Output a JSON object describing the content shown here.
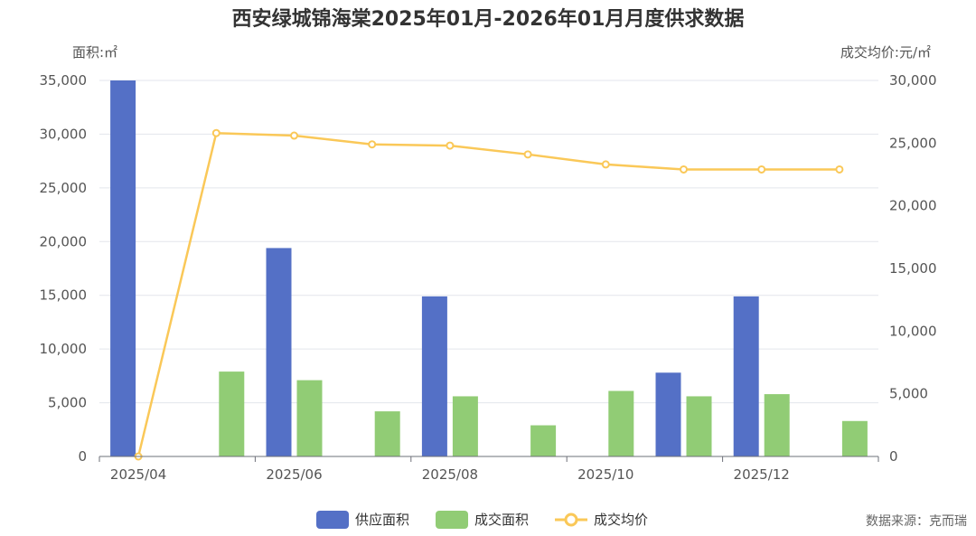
{
  "chart_data": {
    "type": "bar",
    "title": "西安绿城锦海棠2025年01月-2026年01月月度供求数据",
    "y_left_label": "面积:㎡",
    "y_right_label": "成交均价:元/㎡",
    "x_tick_labels": [
      "2025/04",
      "2025/06",
      "2025/08",
      "2025/10",
      "2025/12"
    ],
    "categories": [
      "2025/04",
      "2025/05",
      "2025/06",
      "2025/07",
      "2025/08",
      "2025/09",
      "2025/10",
      "2025/11",
      "2025/12",
      "2026/01"
    ],
    "y_left_ticks": [
      "0",
      "5,000",
      "10,000",
      "15,000",
      "20,000",
      "25,000",
      "30,000",
      "35,000"
    ],
    "y_right_ticks": [
      "0",
      "5,000",
      "10,000",
      "15,000",
      "20,000",
      "25,000",
      "30,000"
    ],
    "ylim_left": [
      0,
      35000
    ],
    "ylim_right": [
      0,
      30000
    ],
    "series": [
      {
        "name": "供应面积",
        "type": "bar",
        "axis": "left",
        "color": "#5470c6",
        "values": [
          35000,
          0,
          19400,
          0,
          14900,
          0,
          0,
          7800,
          14900,
          0
        ]
      },
      {
        "name": "成交面积",
        "type": "bar",
        "axis": "left",
        "color": "#91cc75",
        "values": [
          0,
          7900,
          7100,
          4200,
          5600,
          2900,
          6100,
          5600,
          5800,
          3300
        ]
      },
      {
        "name": "成交均价",
        "type": "line",
        "axis": "right",
        "color": "#fac858",
        "values": [
          0,
          25800,
          25600,
          24900,
          24800,
          24100,
          23300,
          22900,
          22900,
          22900
        ]
      }
    ],
    "source": "数据来源：克而瑞"
  }
}
